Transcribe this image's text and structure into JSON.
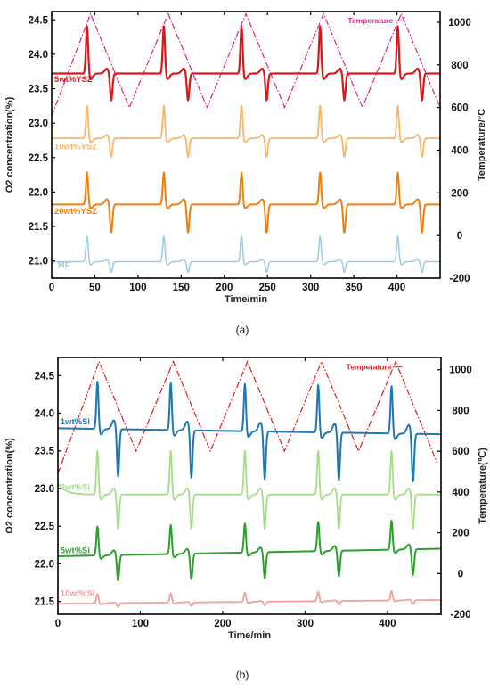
{
  "chart_data": [
    {
      "type": "line",
      "caption": "(a)",
      "xlabel": "Time/min",
      "ylabel": "O2 concentration(%)",
      "y2label": "Temperature/°C",
      "xlim": [
        0,
        450
      ],
      "ylim": [
        20.75,
        24.62
      ],
      "y2lim": [
        -200,
        1050
      ],
      "x_ticks": [
        "0",
        "50",
        "100",
        "150",
        "200",
        "250",
        "300",
        "350",
        "400"
      ],
      "y_ticks": [
        "21.0",
        "21.5",
        "22.0",
        "22.5",
        "23.0",
        "23.5",
        "24.0",
        "24.5"
      ],
      "y2_ticks": [
        "-200",
        "0",
        "200",
        "400",
        "600",
        "800",
        "1000"
      ],
      "temperature": {
        "name": "Temperature",
        "color": "#e0218a",
        "style": "dash-dot",
        "x": [
          0,
          45,
          90,
          135,
          180,
          225,
          270,
          315,
          360,
          405,
          450
        ],
        "y": [
          560,
          1040,
          600,
          1040,
          600,
          1040,
          600,
          1040,
          600,
          1040,
          600
        ]
      },
      "spike_x": [
        41,
        130,
        220,
        311,
        401
      ],
      "dip_x": [
        69,
        158,
        249,
        339,
        429
      ],
      "series": [
        {
          "name": "5wt%YSZ",
          "color": "#d7191c",
          "baseline": 23.72,
          "peak": 24.43,
          "dip": 23.32,
          "line_width": 2.2
        },
        {
          "name": "10wt%YSZ",
          "color": "#f7b76a",
          "baseline": 22.78,
          "peak": 23.27,
          "dip": 22.5,
          "line_width": 1.8
        },
        {
          "name": "20wt%YSZ",
          "color": "#f07f0f",
          "baseline": 21.82,
          "peak": 22.3,
          "dip": 21.4,
          "line_width": 2.0
        },
        {
          "name": "MF",
          "color": "#9ecae1",
          "baseline": 20.99,
          "peak": 21.37,
          "dip": 20.83,
          "line_width": 1.5
        }
      ],
      "series_labels": [
        {
          "text": "5wt%YSZ",
          "x": 3,
          "y": 23.6
        },
        {
          "text": "10wt%YSZ",
          "x": 3,
          "y": 22.62
        },
        {
          "text": "20wt%YSZ",
          "x": 3,
          "y": 21.68
        },
        {
          "text": "MF",
          "x": 7,
          "y": 20.9
        }
      ],
      "temperature_label": {
        "text": "Temperature",
        "x": 343,
        "y": 995
      }
    },
    {
      "type": "line",
      "caption": "(b)",
      "xlabel": "Time/min",
      "ylabel": "O2 concentration(%)",
      "y2label": "Temperature(℃)",
      "xlim": [
        0,
        465
      ],
      "ylim": [
        21.33,
        24.74
      ],
      "y2lim": [
        -200,
        1060
      ],
      "x_ticks": [
        "0",
        "100",
        "200",
        "300",
        "400"
      ],
      "y_ticks": [
        "21.5",
        "22.0",
        "22.5",
        "23.0",
        "23.5",
        "24.0",
        "24.5"
      ],
      "y2_ticks": [
        "-200",
        "0",
        "200",
        "400",
        "600",
        "800",
        "1000"
      ],
      "temperature": {
        "name": "Temperature",
        "color": "#e31a1c",
        "style": "dash-dot",
        "x": [
          0,
          50,
          95,
          140,
          185,
          230,
          275,
          320,
          365,
          410,
          460
        ],
        "y": [
          490,
          1040,
          600,
          1040,
          600,
          1040,
          600,
          1040,
          600,
          1040,
          545
        ]
      },
      "spike_x": [
        48,
        137,
        227,
        316,
        405
      ],
      "dip_x": [
        73,
        162,
        251,
        341,
        431
      ],
      "series": [
        {
          "name": "1wt%Si",
          "color": "#1f77b4",
          "baseline": 23.8,
          "peak": 24.45,
          "dip": 23.15,
          "line_width": 2.0,
          "drift": -0.08
        },
        {
          "name": "2wt%Si",
          "color": "#a6dd8b",
          "baseline": 22.92,
          "peak": 23.52,
          "dip": 22.45,
          "line_width": 1.8,
          "start": 23.07
        },
        {
          "name": "5wt%Si",
          "color": "#2ca02c",
          "baseline": 22.1,
          "peak": 22.5,
          "dip": 21.75,
          "line_width": 2.0,
          "drift": 0.1
        },
        {
          "name": "10wt%Si",
          "color": "#f2a0a0",
          "baseline": 21.47,
          "peak": 21.6,
          "dip": 21.42,
          "line_width": 1.8,
          "drift": 0.05
        }
      ],
      "series_labels": [
        {
          "text": "1wt%Si",
          "x": 3,
          "y": 23.85
        },
        {
          "text": "2wt%Si",
          "x": 3,
          "y": 22.98
        },
        {
          "text": "5wt%Si",
          "x": 3,
          "y": 22.14
        },
        {
          "text": "10wt%Si",
          "x": 3,
          "y": 21.57
        }
      ],
      "temperature_label": {
        "text": "Temperature",
        "x": 350,
        "y": 1000
      }
    }
  ]
}
